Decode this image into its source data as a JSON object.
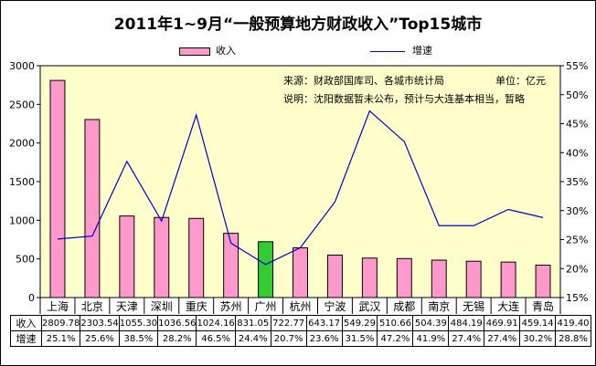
{
  "chart_data": {
    "type": "bar",
    "title": "2011年1~9月“一般预算地方财政收入”Top15城市",
    "categories": [
      "上海",
      "北京",
      "天津",
      "深圳",
      "重庆",
      "苏州",
      "广州",
      "杭州",
      "宁波",
      "武汉",
      "成都",
      "南京",
      "无锡",
      "大连",
      "青岛"
    ],
    "series": [
      {
        "name": "收入",
        "type": "bar",
        "axis": "left",
        "values": [
          2809.78,
          2303.54,
          1055.3,
          1036.56,
          1024.16,
          831.05,
          722.77,
          643.17,
          549.29,
          510.66,
          504.39,
          484.19,
          469.91,
          459.14,
          419.4
        ],
        "color": "#ff99cc",
        "highlight_index": 6,
        "highlight_color": "#33cc33"
      },
      {
        "name": "增速",
        "type": "line",
        "axis": "right",
        "values": [
          25.1,
          25.6,
          38.5,
          28.2,
          46.5,
          24.4,
          20.7,
          23.6,
          31.5,
          47.2,
          41.9,
          27.4,
          27.4,
          30.2,
          28.8
        ],
        "color": "#0000cc"
      }
    ],
    "y_left": {
      "min": 0,
      "max": 3000,
      "ticks": [
        "0",
        "500",
        "1000",
        "1500",
        "2000",
        "2500",
        "3000"
      ]
    },
    "y_right": {
      "min": 15,
      "max": 55,
      "ticks": [
        "15%",
        "20%",
        "25%",
        "30%",
        "35%",
        "40%",
        "45%",
        "50%",
        "55%"
      ]
    },
    "plot_background": "#ffffcc",
    "grid": false,
    "legend_position": "top",
    "annotations": [
      "来源：财政部国库司、各城市统计局",
      "单位：亿元",
      "说明：沈阳数据暂未公布，预计与大连基本相当，暂略"
    ],
    "data_table": {
      "row_labels": [
        "收入",
        "增速"
      ],
      "income_text": [
        "2809.78",
        "2303.54",
        "1055.30",
        "1036.56",
        "1024.16",
        "831.05",
        "722.77",
        "643.17",
        "549.29",
        "510.66",
        "504.39",
        "484.19",
        "469.91",
        "459.14",
        "419.40"
      ],
      "growth_text": [
        "25.1%",
        "25.6%",
        "38.5%",
        "28.2%",
        "46.5%",
        "24.4%",
        "20.7%",
        "23.6%",
        "31.5%",
        "47.2%",
        "41.9%",
        "27.4%",
        "27.4%",
        "30.2%",
        "28.8%"
      ]
    }
  }
}
